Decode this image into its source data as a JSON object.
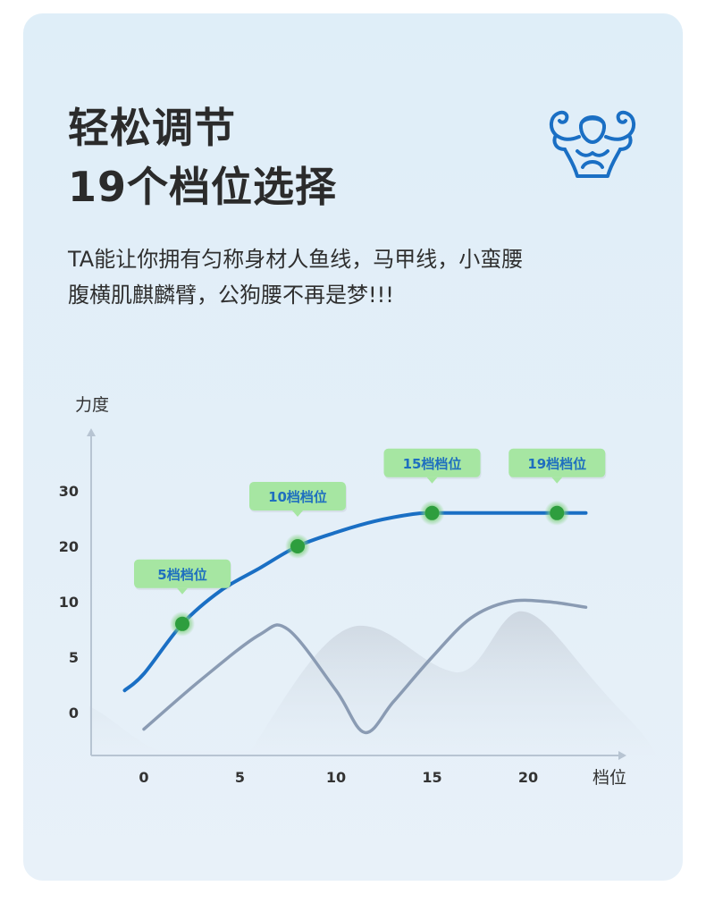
{
  "header": {
    "title_line1": "轻松调节",
    "title_line2": "19个档位选择",
    "description_line1": "TA能让你拥有匀称身材人鱼线，马甲线，小蛮腰",
    "description_line2": "腹横肌麒麟臂，公狗腰不再是梦!!!"
  },
  "icons": {
    "hero": "muscle-man-icon"
  },
  "colors": {
    "accent_line": "#1a6fc4",
    "secondary_line": "#8a9bb3",
    "marker": "#2e9e3e",
    "label_bg": "#a6e6a2",
    "label_text": "#1f6fbf",
    "title_text": "#2b2b2b"
  },
  "chart_data": {
    "type": "line",
    "ylabel": "力度",
    "xlabel": "档位",
    "x_ticks": [
      "0",
      "5",
      "10",
      "15",
      "20"
    ],
    "y_ticks": [
      "0",
      "5",
      "10",
      "20",
      "30"
    ],
    "grid": false,
    "series": [
      {
        "x": [
          -1,
          0,
          2,
          4,
          6,
          8,
          10,
          12,
          14,
          15,
          17,
          19,
          21,
          23
        ],
        "y": [
          2,
          3.5,
          8,
          12,
          16,
          20,
          22.5,
          24.5,
          25.8,
          26,
          26,
          26,
          26,
          26
        ]
      },
      {
        "x": [
          0,
          3,
          6,
          7.5,
          10,
          11.5,
          13,
          15,
          17,
          19,
          21,
          23
        ],
        "y": [
          -1.5,
          3,
          7,
          7.5,
          2,
          -1.8,
          1,
          5,
          8.5,
          10,
          10,
          9.5
        ]
      }
    ],
    "markers": [
      {
        "x": 2,
        "y": 8,
        "label": "5档档位"
      },
      {
        "x": 8,
        "y": 20,
        "label": "10档档位"
      },
      {
        "x": 15,
        "y": 26,
        "label": "15档档位"
      },
      {
        "x": 21.5,
        "y": 26,
        "label": "19档档位"
      }
    ]
  }
}
